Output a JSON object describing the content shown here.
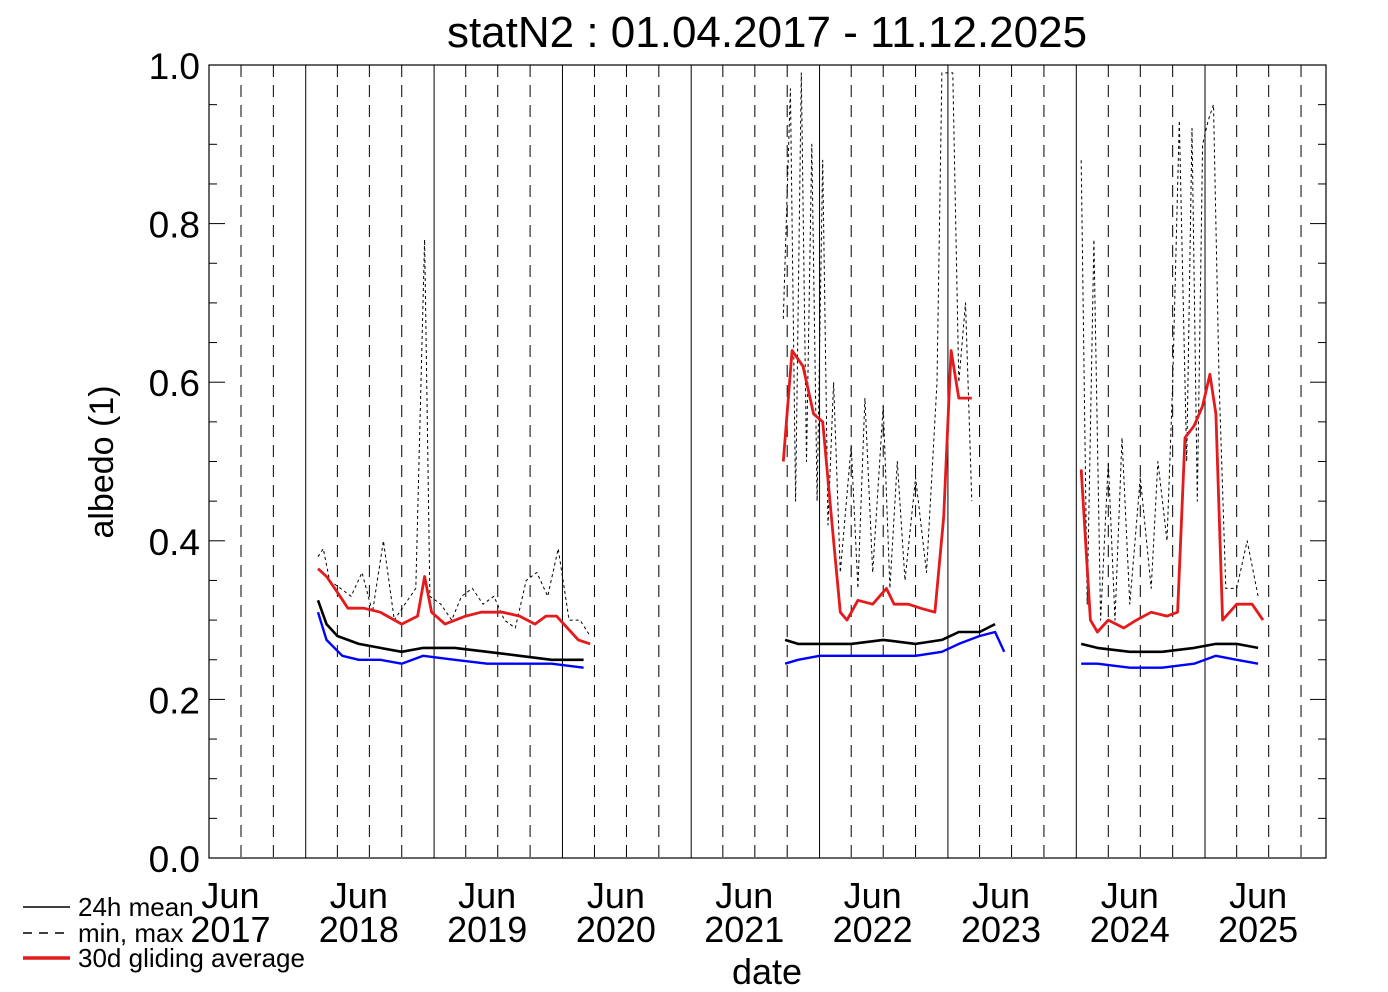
{
  "chart_data": {
    "type": "line",
    "title": "statN2 : 01.04.2017 - 11.12.2025",
    "xlabel": "date",
    "ylabel": "albedo (1)",
    "ylim": [
      0.0,
      1.0
    ],
    "xlim": [
      "2017-04-01",
      "2025-12-11"
    ],
    "yticks": [
      "0.0",
      "0.2",
      "0.4",
      "0.6",
      "0.8",
      "1.0"
    ],
    "xticks": [
      {
        "month": "Jun",
        "year": "2017",
        "date": "2017-06-01"
      },
      {
        "month": "Jun",
        "year": "2018",
        "date": "2018-06-01"
      },
      {
        "month": "Jun",
        "year": "2019",
        "date": "2019-06-01"
      },
      {
        "month": "Jun",
        "year": "2020",
        "date": "2020-06-01"
      },
      {
        "month": "Jun",
        "year": "2021",
        "date": "2021-06-01"
      },
      {
        "month": "Jun",
        "year": "2022",
        "date": "2022-06-01"
      },
      {
        "month": "Jun",
        "year": "2023",
        "date": "2023-06-01"
      },
      {
        "month": "Jun",
        "year": "2024",
        "date": "2024-06-01"
      },
      {
        "month": "Jun",
        "year": "2025",
        "date": "2025-06-01"
      }
    ],
    "legend": {
      "placement": "bottom-left",
      "entries": [
        {
          "label": "24h mean",
          "style": "solid",
          "color": "#000000"
        },
        {
          "label": "min, max",
          "style": "dashed",
          "color": "#000000"
        },
        {
          "label": "30d gliding average",
          "style": "solid-thick",
          "color": "#e41a1c"
        }
      ]
    },
    "grid": "vertical lines: solid at each January, dashed at Apr / Jul / Oct",
    "series": [
      {
        "name": "30d gliding average",
        "color": "#e41a1c",
        "segments": [
          [
            [
              "2018-02-05",
              0.365
            ],
            [
              "2018-03-01",
              0.355
            ],
            [
              "2018-04-01",
              0.335
            ],
            [
              "2018-05-01",
              0.315
            ],
            [
              "2018-06-15",
              0.315
            ],
            [
              "2018-08-01",
              0.31
            ],
            [
              "2018-10-01",
              0.295
            ],
            [
              "2018-11-15",
              0.305
            ],
            [
              "2018-12-05",
              0.355
            ],
            [
              "2018-12-25",
              0.31
            ],
            [
              "2019-02-01",
              0.295
            ],
            [
              "2019-04-01",
              0.305
            ],
            [
              "2019-05-15",
              0.31
            ],
            [
              "2019-07-15",
              0.31
            ],
            [
              "2019-09-01",
              0.305
            ],
            [
              "2019-10-15",
              0.295
            ],
            [
              "2019-11-15",
              0.305
            ],
            [
              "2019-12-15",
              0.305
            ],
            [
              "2020-01-15",
              0.29
            ],
            [
              "2020-02-15",
              0.275
            ],
            [
              "2020-03-20",
              0.27
            ]
          ],
          [
            [
              "2021-09-20",
              0.5
            ],
            [
              "2021-10-15",
              0.64
            ],
            [
              "2021-11-15",
              0.62
            ],
            [
              "2021-12-15",
              0.56
            ],
            [
              "2022-01-10",
              0.55
            ],
            [
              "2022-02-10",
              0.4
            ],
            [
              "2022-03-01",
              0.31
            ],
            [
              "2022-03-20",
              0.3
            ],
            [
              "2022-04-20",
              0.325
            ],
            [
              "2022-06-01",
              0.32
            ],
            [
              "2022-07-10",
              0.34
            ],
            [
              "2022-08-01",
              0.32
            ],
            [
              "2022-09-10",
              0.32
            ],
            [
              "2022-10-15",
              0.315
            ],
            [
              "2022-11-25",
              0.31
            ],
            [
              "2022-12-20",
              0.43
            ],
            [
              "2023-01-10",
              0.64
            ],
            [
              "2023-02-01",
              0.58
            ],
            [
              "2023-03-10",
              0.58
            ]
          ],
          [
            [
              "2024-01-15",
              0.49
            ],
            [
              "2024-02-10",
              0.3
            ],
            [
              "2024-03-01",
              0.285
            ],
            [
              "2024-04-01",
              0.3
            ],
            [
              "2024-05-15",
              0.29
            ],
            [
              "2024-06-20",
              0.3
            ],
            [
              "2024-08-01",
              0.31
            ],
            [
              "2024-09-15",
              0.305
            ],
            [
              "2024-10-15",
              0.31
            ],
            [
              "2024-11-05",
              0.53
            ],
            [
              "2024-12-01",
              0.545
            ],
            [
              "2024-12-25",
              0.57
            ],
            [
              "2025-01-15",
              0.61
            ],
            [
              "2025-02-01",
              0.56
            ],
            [
              "2025-02-20",
              0.3
            ],
            [
              "2025-04-01",
              0.32
            ],
            [
              "2025-05-15",
              0.32
            ],
            [
              "2025-06-15",
              0.3
            ]
          ]
        ]
      },
      {
        "name": "24h mean",
        "color": "#000000",
        "segments": [
          [
            [
              "2018-02-05",
              0.325
            ],
            [
              "2018-03-01",
              0.295
            ],
            [
              "2018-04-01",
              0.28
            ],
            [
              "2018-06-01",
              0.27
            ],
            [
              "2018-08-01",
              0.265
            ],
            [
              "2018-10-01",
              0.26
            ],
            [
              "2018-12-01",
              0.265
            ],
            [
              "2019-03-01",
              0.265
            ],
            [
              "2019-06-01",
              0.26
            ],
            [
              "2019-09-01",
              0.255
            ],
            [
              "2019-12-01",
              0.25
            ],
            [
              "2020-03-01",
              0.25
            ]
          ],
          [
            [
              "2021-09-25",
              0.275
            ],
            [
              "2021-11-01",
              0.27
            ],
            [
              "2022-01-01",
              0.27
            ],
            [
              "2022-04-01",
              0.27
            ],
            [
              "2022-07-01",
              0.275
            ],
            [
              "2022-10-01",
              0.27
            ],
            [
              "2022-12-15",
              0.275
            ],
            [
              "2023-02-01",
              0.285
            ],
            [
              "2023-04-01",
              0.285
            ],
            [
              "2023-05-15",
              0.295
            ]
          ],
          [
            [
              "2024-01-15",
              0.27
            ],
            [
              "2024-03-01",
              0.265
            ],
            [
              "2024-06-01",
              0.26
            ],
            [
              "2024-09-01",
              0.26
            ],
            [
              "2024-12-01",
              0.265
            ],
            [
              "2025-02-01",
              0.27
            ],
            [
              "2025-04-01",
              0.27
            ],
            [
              "2025-06-01",
              0.265
            ]
          ]
        ]
      },
      {
        "name": "",
        "color": "#0000ff",
        "segments": [
          [
            [
              "2018-02-05",
              0.31
            ],
            [
              "2018-03-01",
              0.275
            ],
            [
              "2018-04-15",
              0.255
            ],
            [
              "2018-06-01",
              0.25
            ],
            [
              "2018-08-01",
              0.25
            ],
            [
              "2018-10-01",
              0.245
            ],
            [
              "2018-12-01",
              0.255
            ],
            [
              "2019-03-01",
              0.25
            ],
            [
              "2019-06-01",
              0.245
            ],
            [
              "2019-09-01",
              0.245
            ],
            [
              "2019-12-01",
              0.245
            ],
            [
              "2020-03-01",
              0.24
            ]
          ],
          [
            [
              "2021-09-25",
              0.245
            ],
            [
              "2021-11-01",
              0.25
            ],
            [
              "2022-01-01",
              0.255
            ],
            [
              "2022-04-01",
              0.255
            ],
            [
              "2022-07-01",
              0.255
            ],
            [
              "2022-10-01",
              0.255
            ],
            [
              "2022-12-15",
              0.26
            ],
            [
              "2023-02-01",
              0.27
            ],
            [
              "2023-04-01",
              0.28
            ],
            [
              "2023-05-15",
              0.285
            ],
            [
              "2023-06-10",
              0.26
            ]
          ],
          [
            [
              "2024-01-15",
              0.245
            ],
            [
              "2024-03-01",
              0.245
            ],
            [
              "2024-06-01",
              0.24
            ],
            [
              "2024-09-01",
              0.24
            ],
            [
              "2024-12-01",
              0.245
            ],
            [
              "2025-02-01",
              0.255
            ],
            [
              "2025-04-01",
              0.25
            ],
            [
              "2025-06-01",
              0.245
            ]
          ]
        ]
      },
      {
        "name": "min, max",
        "color": "#000000",
        "style": "dashed",
        "segments": [
          [
            [
              "2018-02-05",
              0.38
            ],
            [
              "2018-02-20",
              0.39
            ],
            [
              "2018-03-10",
              0.35
            ],
            [
              "2018-04-10",
              0.34
            ],
            [
              "2018-05-10",
              0.33
            ],
            [
              "2018-06-10",
              0.36
            ],
            [
              "2018-07-10",
              0.31
            ],
            [
              "2018-08-10",
              0.4
            ],
            [
              "2018-09-10",
              0.3
            ],
            [
              "2018-10-10",
              0.32
            ],
            [
              "2018-11-10",
              0.34
            ],
            [
              "2018-12-05",
              0.78
            ],
            [
              "2018-12-20",
              0.33
            ],
            [
              "2019-01-20",
              0.32
            ],
            [
              "2019-02-20",
              0.3
            ],
            [
              "2019-03-20",
              0.33
            ],
            [
              "2019-04-20",
              0.34
            ],
            [
              "2019-05-20",
              0.32
            ],
            [
              "2019-06-20",
              0.33
            ],
            [
              "2019-07-20",
              0.3
            ],
            [
              "2019-08-20",
              0.29
            ],
            [
              "2019-09-20",
              0.35
            ],
            [
              "2019-10-20",
              0.36
            ],
            [
              "2019-11-20",
              0.33
            ],
            [
              "2019-12-20",
              0.39
            ],
            [
              "2020-01-20",
              0.3
            ],
            [
              "2020-02-20",
              0.3
            ],
            [
              "2020-03-20",
              0.28
            ]
          ],
          [
            [
              "2021-09-20",
              0.68
            ],
            [
              "2021-10-10",
              0.97
            ],
            [
              "2021-10-25",
              0.45
            ],
            [
              "2021-11-10",
              0.99
            ],
            [
              "2021-11-25",
              0.5
            ],
            [
              "2021-12-10",
              0.9
            ],
            [
              "2021-12-25",
              0.45
            ],
            [
              "2022-01-10",
              0.88
            ],
            [
              "2022-01-25",
              0.42
            ],
            [
              "2022-02-10",
              0.6
            ],
            [
              "2022-03-01",
              0.36
            ],
            [
              "2022-04-01",
              0.52
            ],
            [
              "2022-04-20",
              0.34
            ],
            [
              "2022-05-10",
              0.58
            ],
            [
              "2022-06-01",
              0.36
            ],
            [
              "2022-07-01",
              0.57
            ],
            [
              "2022-07-20",
              0.34
            ],
            [
              "2022-08-10",
              0.5
            ],
            [
              "2022-09-01",
              0.35
            ],
            [
              "2022-10-01",
              0.48
            ],
            [
              "2022-11-01",
              0.36
            ],
            [
              "2022-12-01",
              0.6
            ],
            [
              "2022-12-15",
              0.99
            ],
            [
              "2023-01-01",
              0.99
            ],
            [
              "2023-01-15",
              0.99
            ],
            [
              "2023-02-01",
              0.6
            ],
            [
              "2023-02-20",
              0.7
            ],
            [
              "2023-03-10",
              0.45
            ]
          ],
          [
            [
              "2024-01-15",
              0.88
            ],
            [
              "2024-02-01",
              0.32
            ],
            [
              "2024-02-20",
              0.78
            ],
            [
              "2024-03-10",
              0.3
            ],
            [
              "2024-04-01",
              0.5
            ],
            [
              "2024-04-20",
              0.3
            ],
            [
              "2024-05-10",
              0.53
            ],
            [
              "2024-06-01",
              0.32
            ],
            [
              "2024-07-01",
              0.48
            ],
            [
              "2024-08-01",
              0.34
            ],
            [
              "2024-08-20",
              0.5
            ],
            [
              "2024-09-15",
              0.4
            ],
            [
              "2024-10-01",
              0.6
            ],
            [
              "2024-10-20",
              0.93
            ],
            [
              "2024-11-10",
              0.5
            ],
            [
              "2024-11-25",
              0.92
            ],
            [
              "2024-12-10",
              0.45
            ],
            [
              "2024-12-25",
              0.9
            ],
            [
              "2025-01-10",
              0.93
            ],
            [
              "2025-01-25",
              0.95
            ],
            [
              "2025-02-10",
              0.6
            ],
            [
              "2025-03-01",
              0.34
            ],
            [
              "2025-04-01",
              0.34
            ],
            [
              "2025-05-01",
              0.4
            ],
            [
              "2025-06-01",
              0.33
            ]
          ]
        ]
      }
    ]
  }
}
